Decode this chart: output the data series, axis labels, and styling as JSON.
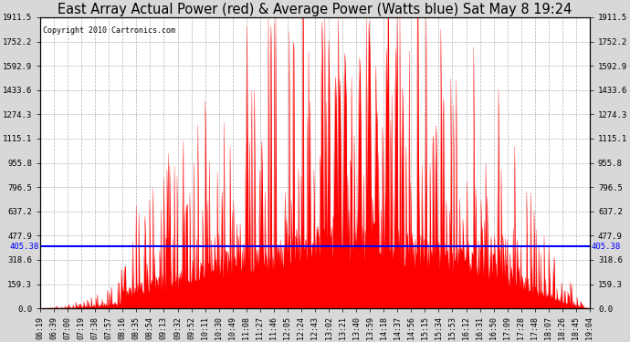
{
  "title": "East Array Actual Power (red) & Average Power (Watts blue) Sat May 8 19:24",
  "copyright": "Copyright 2010 Cartronics.com",
  "average_power": 405.38,
  "ymax": 1911.5,
  "ymin": 0.0,
  "yticks": [
    0.0,
    159.3,
    318.6,
    477.9,
    637.2,
    796.5,
    955.8,
    1115.1,
    1274.3,
    1433.6,
    1592.9,
    1752.2,
    1911.5
  ],
  "ytick_labels": [
    "0.0",
    "159.3",
    "318.6",
    "477.9",
    "637.2",
    "796.5",
    "955.8",
    "1115.1",
    "1274.3",
    "1433.6",
    "1592.9",
    "1752.2",
    "1911.5"
  ],
  "xtick_labels": [
    "06:19",
    "06:39",
    "07:00",
    "07:19",
    "07:38",
    "07:57",
    "08:16",
    "08:35",
    "08:54",
    "09:13",
    "09:32",
    "09:52",
    "10:11",
    "10:30",
    "10:49",
    "11:08",
    "11:27",
    "11:46",
    "12:05",
    "12:24",
    "12:43",
    "13:02",
    "13:21",
    "13:40",
    "13:59",
    "14:18",
    "14:37",
    "14:56",
    "15:15",
    "15:34",
    "15:53",
    "16:12",
    "16:31",
    "16:50",
    "17:09",
    "17:28",
    "17:48",
    "18:07",
    "18:26",
    "18:45",
    "19:04"
  ],
  "background_color": "#d8d8d8",
  "plot_bg_color": "#ffffff",
  "line_color": "#0000ff",
  "fill_color": "#ff0000",
  "title_fontsize": 10.5,
  "avg_label": "405.38",
  "grid_color": "#aaaaaa"
}
